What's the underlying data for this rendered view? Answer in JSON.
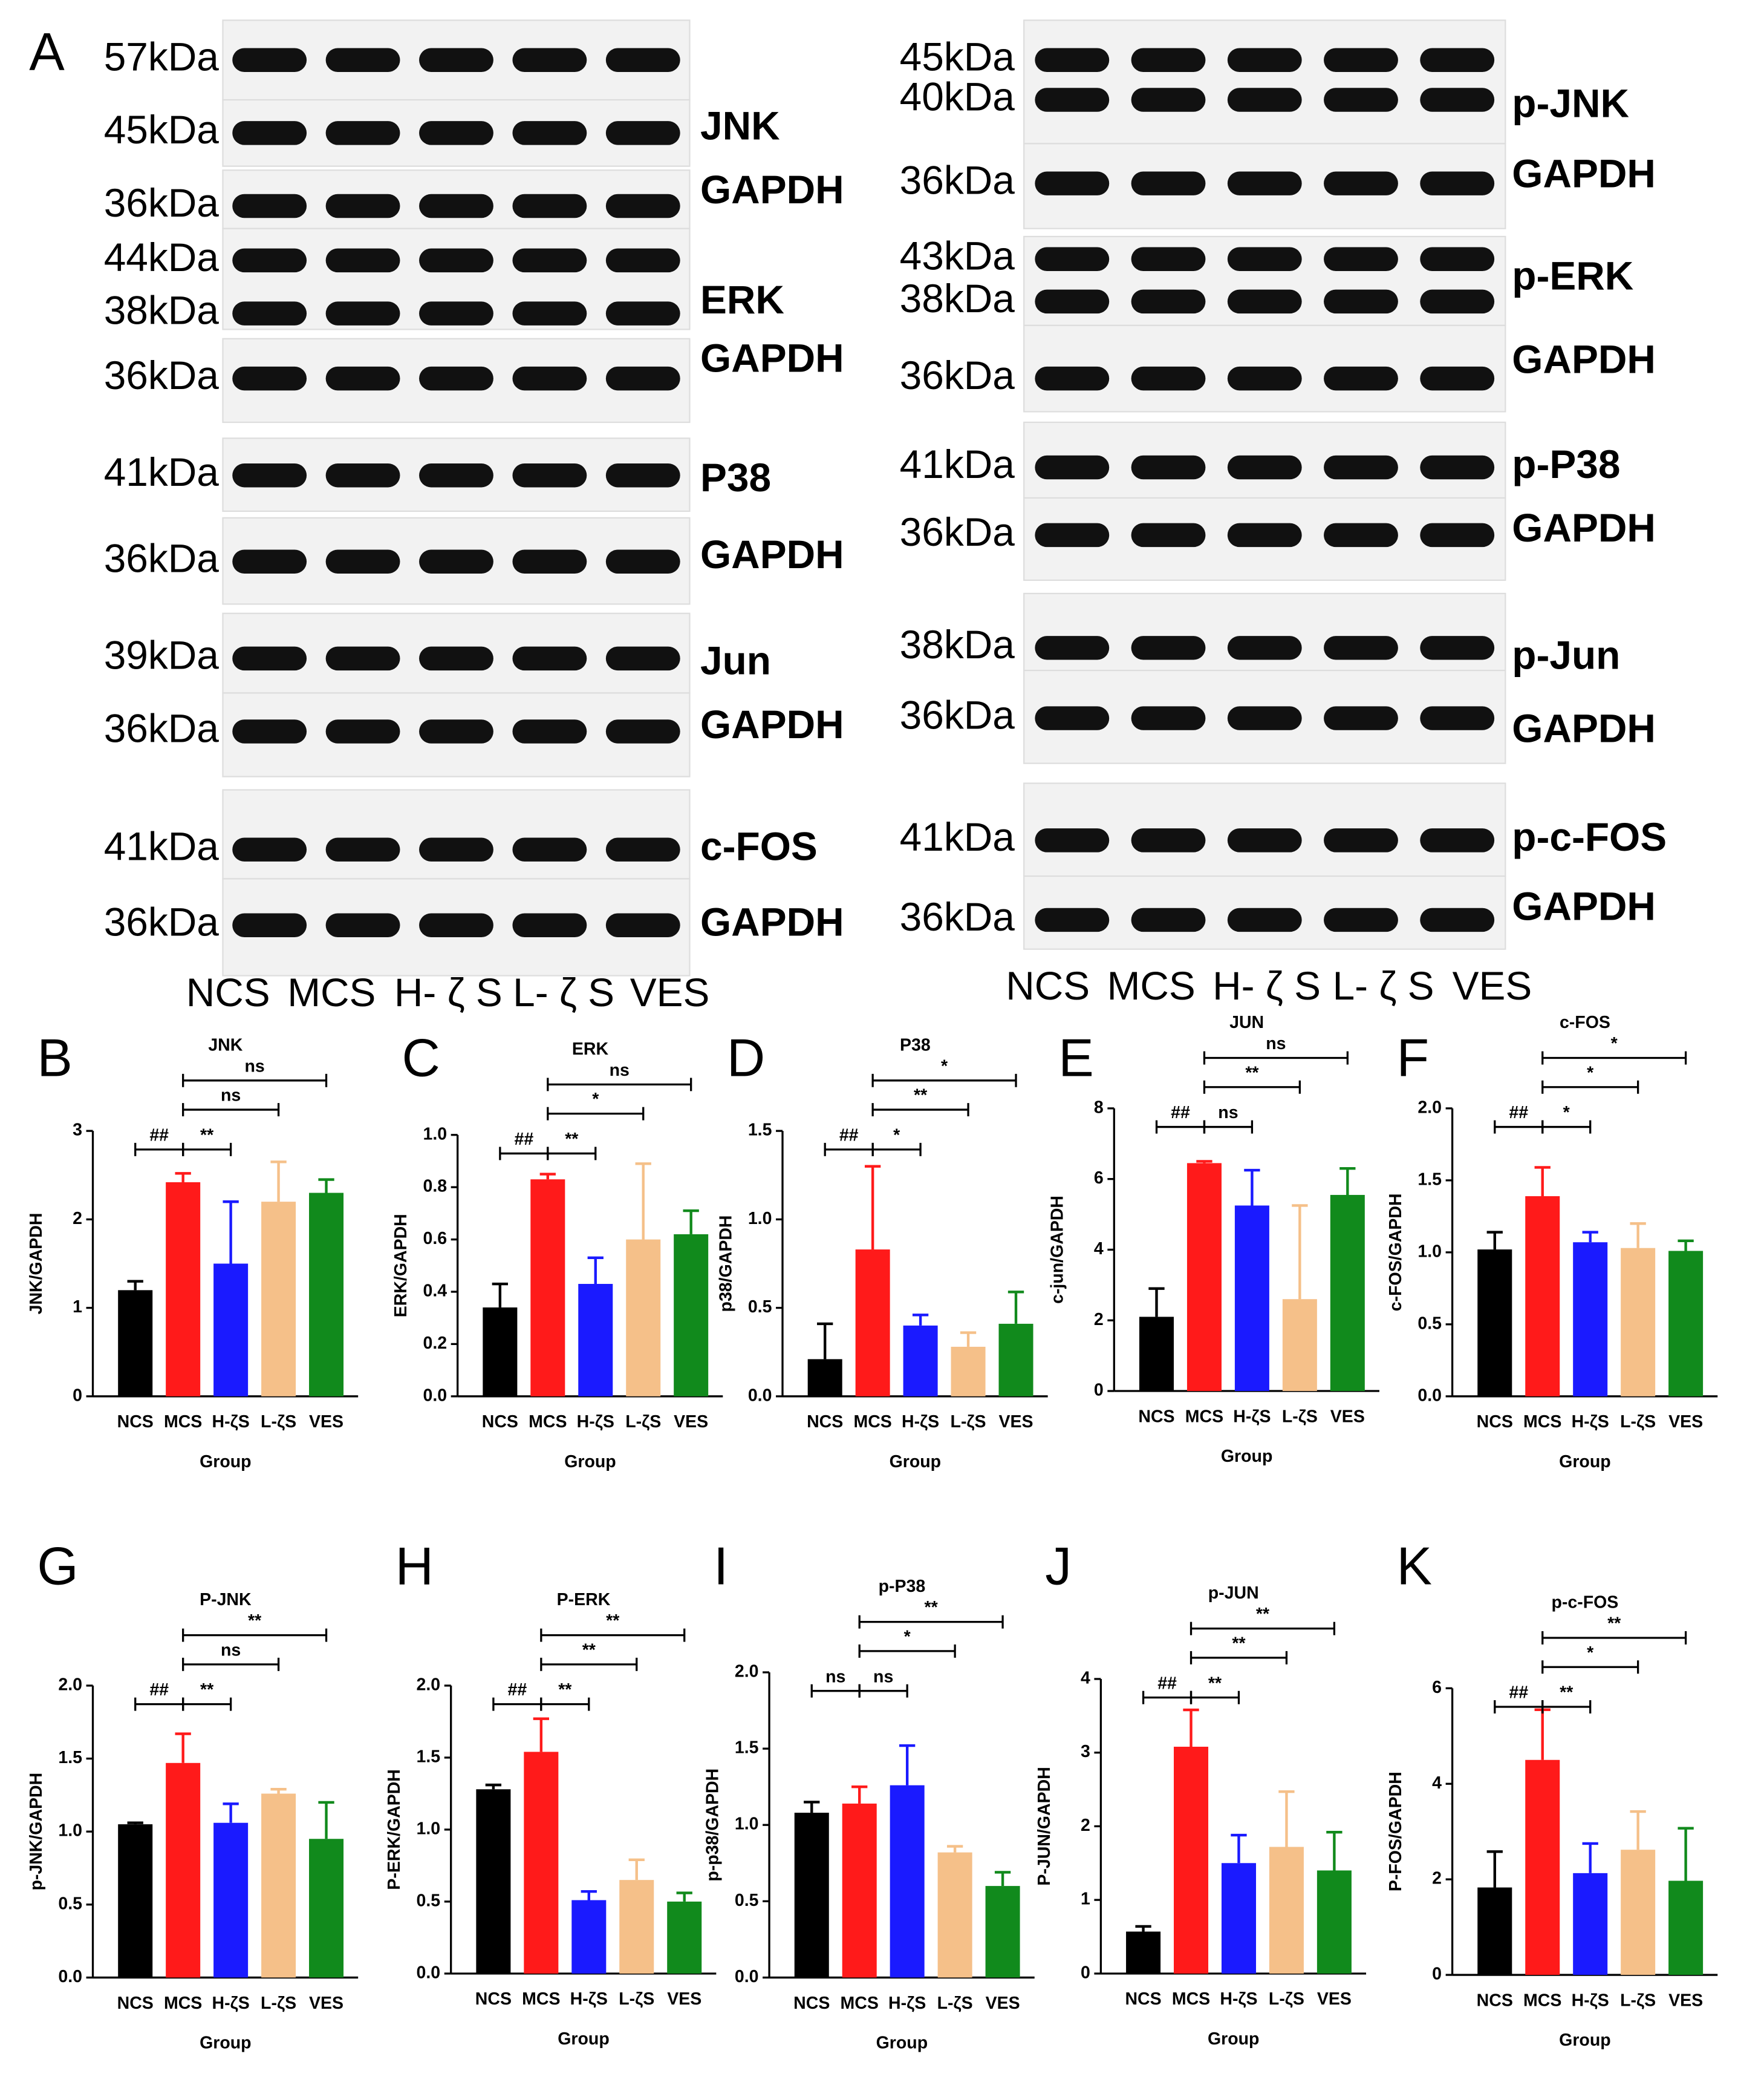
{
  "panel_a": {
    "label": "A",
    "left": {
      "markers": [
        "57kDa",
        "45kDa",
        "36kDa",
        "44kDa",
        "38kDa",
        "36kDa",
        "41kDa",
        "36kDa",
        "39kDa",
        "36kDa",
        "41kDa",
        "36kDa"
      ],
      "proteins": [
        "JNK",
        "GAPDH",
        "ERK",
        "GAPDH",
        "P38",
        "GAPDH",
        "Jun",
        "GAPDH",
        "c-FOS",
        "GAPDH"
      ],
      "lanes": [
        "NCS",
        "MCS",
        "H- ζ S",
        "L- ζ S",
        "VES"
      ]
    },
    "right": {
      "markers": [
        "45kDa",
        "40kDa",
        "36kDa",
        "43kDa",
        "38kDa",
        "36kDa",
        "41kDa",
        "36kDa",
        "38kDa",
        "36kDa",
        "41kDa",
        "36kDa"
      ],
      "proteins": [
        "p-JNK",
        "GAPDH",
        "p-ERK",
        "GAPDH",
        "p-P38",
        "GAPDH",
        "p-Jun",
        "GAPDH",
        "p-c-FOS",
        "GAPDH"
      ],
      "lanes": [
        "NCS",
        "MCS",
        "H- ζ S",
        "L- ζ S",
        "VES"
      ]
    }
  },
  "chart_data": [
    {
      "type": "bar",
      "panel": "B",
      "title": "JNK",
      "y_label": "JNK/GAPDH",
      "x_label": "Group",
      "categories": [
        "NCS",
        "MCS",
        "H-ζS",
        "L-ζS",
        "VES"
      ],
      "values": [
        1.2,
        2.42,
        1.5,
        2.2,
        2.3
      ],
      "errors": [
        0.1,
        0.1,
        0.7,
        0.45,
        0.15
      ],
      "colors": [
        "#000000",
        "#ff1a1a",
        "#1a1aff",
        "#f5c089",
        "#118a1c"
      ],
      "ylim": [
        0,
        3
      ],
      "yticks": [
        0,
        1,
        2,
        3
      ],
      "comparisons": [
        "##",
        "**",
        "ns",
        "ns"
      ]
    },
    {
      "type": "bar",
      "panel": "C",
      "title": "ERK",
      "y_label": "ERK/GAPDH",
      "x_label": "Group",
      "categories": [
        "NCS",
        "MCS",
        "H-ζS",
        "L-ζS",
        "VES"
      ],
      "values": [
        0.34,
        0.83,
        0.43,
        0.6,
        0.62
      ],
      "errors": [
        0.09,
        0.02,
        0.1,
        0.29,
        0.09
      ],
      "colors": [
        "#000000",
        "#ff1a1a",
        "#1a1aff",
        "#f5c089",
        "#118a1c"
      ],
      "ylim": [
        0,
        1
      ],
      "yticks": [
        {
          "value": 0,
          "label": "0.0"
        },
        0.2,
        0.4,
        0.6,
        0.8,
        {
          "value": 1,
          "label": "1.0"
        }
      ],
      "comparisons": [
        "##",
        "**",
        "*",
        "ns"
      ]
    },
    {
      "type": "bar",
      "panel": "D",
      "title": "P38",
      "y_label": "p38/GAPDH",
      "x_label": "Group",
      "categories": [
        "NCS",
        "MCS",
        "H-ζS",
        "L-ζS",
        "VES"
      ],
      "values": [
        0.21,
        0.83,
        0.4,
        0.28,
        0.41
      ],
      "errors": [
        0.2,
        0.47,
        0.06,
        0.08,
        0.18
      ],
      "colors": [
        "#000000",
        "#ff1a1a",
        "#1a1aff",
        "#f5c089",
        "#118a1c"
      ],
      "ylim": [
        0,
        1.5
      ],
      "yticks": [
        {
          "value": 0,
          "label": "0.0"
        },
        0.5,
        {
          "value": 1,
          "label": "1.0"
        },
        1.5
      ],
      "comparisons": [
        "##",
        "*",
        "**",
        "*"
      ]
    },
    {
      "type": "bar",
      "panel": "E",
      "title": "JUN",
      "y_label": "c-jun/GAPDH",
      "x_label": "Group",
      "categories": [
        "NCS",
        "MCS",
        "H-ζS",
        "L-ζS",
        "VES"
      ],
      "values": [
        2.1,
        6.45,
        5.25,
        2.6,
        5.55
      ],
      "errors": [
        0.8,
        0.05,
        1,
        2.65,
        0.75
      ],
      "colors": [
        "#000000",
        "#ff1a1a",
        "#1a1aff",
        "#f5c089",
        "#118a1c"
      ],
      "ylim": [
        0,
        8
      ],
      "yticks": [
        0,
        2,
        4,
        6,
        8
      ],
      "comparisons": [
        "##",
        "ns",
        "**",
        "ns"
      ]
    },
    {
      "type": "bar",
      "panel": "F",
      "title": "c-FOS",
      "y_label": "c-FOS/GAPDH",
      "x_label": "Group",
      "categories": [
        "NCS",
        "MCS",
        "H-ζS",
        "L-ζS",
        "VES"
      ],
      "values": [
        1.02,
        1.39,
        1.07,
        1.03,
        1.01
      ],
      "errors": [
        0.12,
        0.2,
        0.07,
        0.17,
        0.07
      ],
      "colors": [
        "#000000",
        "#ff1a1a",
        "#1a1aff",
        "#f5c089",
        "#118a1c"
      ],
      "ylim": [
        0,
        2
      ],
      "yticks": [
        {
          "value": 0,
          "label": "0.0"
        },
        0.5,
        {
          "value": 1,
          "label": "1.0"
        },
        1.5,
        {
          "value": 2,
          "label": "2.0"
        }
      ],
      "comparisons": [
        "##",
        "*",
        "*",
        "*"
      ]
    },
    {
      "type": "bar",
      "panel": "G",
      "title": "P-JNK",
      "y_label": "p-JNK/GAPDH",
      "x_label": "Group",
      "categories": [
        "NCS",
        "MCS",
        "H-ζS",
        "L-ζS",
        "VES"
      ],
      "values": [
        1.05,
        1.47,
        1.06,
        1.26,
        0.95
      ],
      "errors": [
        0.01,
        0.2,
        0.13,
        0.03,
        0.25
      ],
      "colors": [
        "#000000",
        "#ff1a1a",
        "#1a1aff",
        "#f5c089",
        "#118a1c"
      ],
      "ylim": [
        0,
        2
      ],
      "yticks": [
        {
          "value": 0,
          "label": "0.0"
        },
        0.5,
        {
          "value": 1,
          "label": "1.0"
        },
        1.5,
        {
          "value": 2,
          "label": "2.0"
        }
      ],
      "comparisons": [
        "##",
        "**",
        "ns",
        "**"
      ]
    },
    {
      "type": "bar",
      "panel": "H",
      "title": "P-ERK",
      "y_label": "P-ERK/GAPDH",
      "x_label": "Group",
      "categories": [
        "NCS",
        "MCS",
        "H-ζS",
        "L-ζS",
        "VES"
      ],
      "values": [
        1.28,
        1.54,
        0.51,
        0.65,
        0.5
      ],
      "errors": [
        0.03,
        0.23,
        0.06,
        0.14,
        0.06
      ],
      "colors": [
        "#000000",
        "#ff1a1a",
        "#1a1aff",
        "#f5c089",
        "#118a1c"
      ],
      "ylim": [
        0,
        2
      ],
      "yticks": [
        {
          "value": 0,
          "label": "0.0"
        },
        0.5,
        {
          "value": 1,
          "label": "1.0"
        },
        1.5,
        {
          "value": 2,
          "label": "2.0"
        }
      ],
      "comparisons": [
        "##",
        "**",
        "**",
        "**"
      ]
    },
    {
      "type": "bar",
      "panel": "I",
      "title": "p-P38",
      "y_label": "p-p38/GAPDH",
      "x_label": "Group",
      "categories": [
        "NCS",
        "MCS",
        "H-ζS",
        "L-ζS",
        "VES"
      ],
      "values": [
        1.08,
        1.14,
        1.26,
        0.82,
        0.6
      ],
      "errors": [
        0.07,
        0.11,
        0.26,
        0.04,
        0.09
      ],
      "colors": [
        "#000000",
        "#ff1a1a",
        "#1a1aff",
        "#f5c089",
        "#118a1c"
      ],
      "ylim": [
        0,
        2
      ],
      "yticks": [
        {
          "value": 0,
          "label": "0.0"
        },
        0.5,
        {
          "value": 1,
          "label": "1.0"
        },
        1.5,
        {
          "value": 2,
          "label": "2.0"
        }
      ],
      "comparisons": [
        "ns",
        "ns",
        "*",
        "**"
      ]
    },
    {
      "type": "bar",
      "panel": "J",
      "title": "p-JUN",
      "y_label": "P-JUN/GAPDH",
      "x_label": "Group",
      "categories": [
        "NCS",
        "MCS",
        "H-ζS",
        "L-ζS",
        "VES"
      ],
      "values": [
        0.57,
        3.08,
        1.5,
        1.72,
        1.4
      ],
      "errors": [
        0.07,
        0.5,
        0.38,
        0.75,
        0.52
      ],
      "colors": [
        "#000000",
        "#ff1a1a",
        "#1a1aff",
        "#f5c089",
        "#118a1c"
      ],
      "ylim": [
        0,
        4
      ],
      "yticks": [
        0,
        1,
        2,
        3,
        4
      ],
      "comparisons": [
        "##",
        "**",
        "**",
        "**"
      ]
    },
    {
      "type": "bar",
      "panel": "K",
      "title": "p-c-FOS",
      "y_label": "P-FOS/GAPDH",
      "x_label": "Group",
      "categories": [
        "NCS",
        "MCS",
        "H-ζS",
        "L-ζS",
        "VES"
      ],
      "values": [
        1.83,
        4.5,
        2.13,
        2.62,
        1.97
      ],
      "errors": [
        0.75,
        1.05,
        0.62,
        0.8,
        1.1
      ],
      "colors": [
        "#000000",
        "#ff1a1a",
        "#1a1aff",
        "#f5c089",
        "#118a1c"
      ],
      "ylim": [
        0,
        6
      ],
      "yticks": [
        0,
        2,
        4,
        6
      ],
      "comparisons": [
        "##",
        "**",
        "*",
        "**"
      ]
    }
  ]
}
